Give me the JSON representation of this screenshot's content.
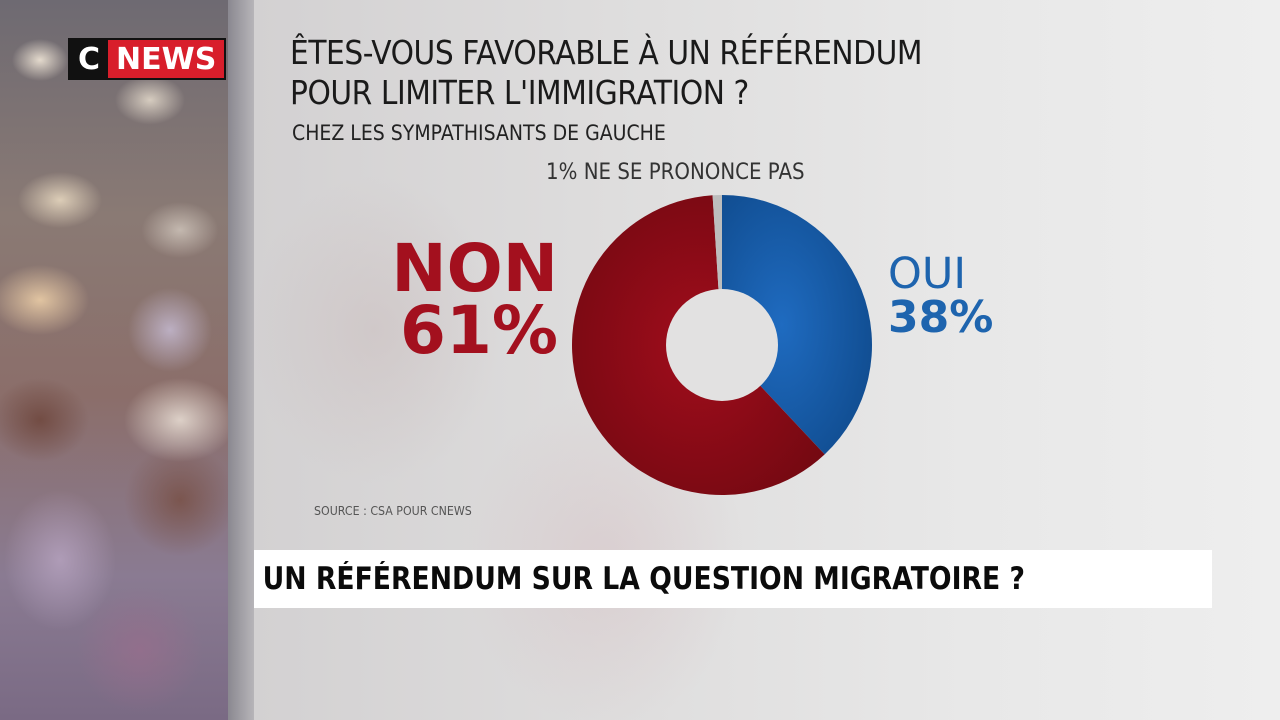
{
  "brand": {
    "logo_c": "C",
    "logo_news": "NEWS",
    "accent": "#d81e2b"
  },
  "graphic": {
    "title_line1": "ÊTES-VOUS FAVORABLE À UN RÉFÉRENDUM",
    "title_line2": "POUR LIMITER L'IMMIGRATION ?",
    "subtitle": "CHEZ LES SYMPATHISANTS DE GAUCHE",
    "no_opinion_label": "1% NE SE PRONONCE PAS",
    "non_label": "NON",
    "non_value": "61%",
    "oui_label": "OUI",
    "oui_value": "38%",
    "source": "SOURCE : CSA POUR CNEWS"
  },
  "bandeau": {
    "headline": "UN RÉFÉRENDUM SUR LA QUESTION MIGRATOIRE ?"
  },
  "chart_data": {
    "type": "pie",
    "variant": "donut",
    "title": "ÊTES-VOUS FAVORABLE À UN RÉFÉRENDUM POUR LIMITER L'IMMIGRATION ?",
    "subtitle": "CHEZ LES SYMPATHISANTS DE GAUCHE",
    "categories": [
      "OUI",
      "NON",
      "NE SE PRONONCE PAS"
    ],
    "values": [
      38,
      61,
      1
    ],
    "colors": [
      "#1e64ae",
      "#a3101e",
      "#bdbdbd"
    ],
    "unit": "%",
    "start_angle_deg": 0,
    "direction": "clockwise",
    "source": "SOURCE : CSA POUR CNEWS"
  }
}
